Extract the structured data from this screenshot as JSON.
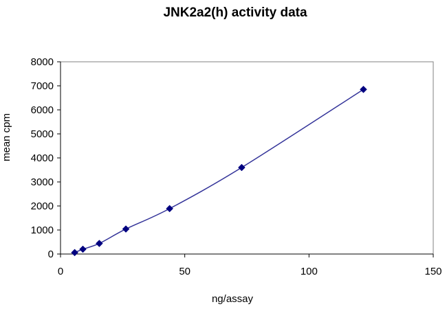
{
  "chart_data": {
    "type": "scatter",
    "title": "JNK2a2(h) activity data",
    "xlabel": "ng/assay",
    "ylabel": "mean cpm",
    "xlim": [
      0,
      150
    ],
    "ylim": [
      0,
      8000
    ],
    "xticks": [
      "0",
      "50",
      "100",
      "150"
    ],
    "yticks": [
      "0",
      "1000",
      "2000",
      "3000",
      "4000",
      "5000",
      "6000",
      "7000",
      "8000"
    ],
    "grid": false,
    "legend": "none",
    "series": [
      {
        "x": [
          5.7,
          9.0,
          15.6,
          26.3,
          43.9,
          72.9,
          121.9
        ],
        "y": [
          60,
          200,
          440,
          1040,
          1890,
          3600,
          6850
        ]
      }
    ],
    "marker_color": "#000080",
    "line_color": "#333399",
    "fit_line": "smooth"
  }
}
